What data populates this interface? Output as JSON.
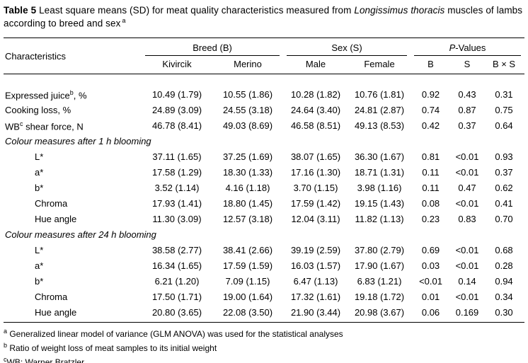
{
  "title": {
    "label": "Table 5",
    "segment1": " Least square means (SD) for meat quality characteristics measured from ",
    "species": "Longissimus thoracis",
    "segment2": " muscles of lambs according to breed and sex",
    "footnote_marker": "a"
  },
  "header": {
    "characteristics": "Characteristics",
    "groups": [
      {
        "label": "Breed (B)",
        "columns": [
          "Kivircik",
          "Merino"
        ]
      },
      {
        "label": "Sex (S)",
        "columns": [
          "Male",
          "Female"
        ]
      },
      {
        "label": "P-Values",
        "label_italic": "P",
        "label_rest": "-Values",
        "columns": [
          "B",
          "S",
          "B × S"
        ]
      }
    ]
  },
  "rows": [
    {
      "type": "data",
      "indent": false,
      "label": "Expressed juice",
      "label_sup": "b",
      "label_suffix": ", %",
      "values": [
        "10.49 (1.79)",
        "10.55 (1.86)",
        "10.28 (1.82)",
        "10.76 (1.81)",
        "0.92",
        "0.43",
        "0.31"
      ]
    },
    {
      "type": "data",
      "indent": false,
      "label": "Cooking loss, %",
      "values": [
        "24.89 (3.09)",
        "24.55 (3.18)",
        "24.64 (3.40)",
        "24.81 (2.87)",
        "0.74",
        "0.87",
        "0.75"
      ]
    },
    {
      "type": "data",
      "indent": false,
      "label": "WB",
      "label_sup": "c",
      "label_suffix": " shear force, N",
      "values": [
        "46.78 (8.41)",
        "49.03 (8.69)",
        "46.58 (8.51)",
        "49.13 (8.53)",
        "0.42",
        "0.37",
        "0.64"
      ]
    },
    {
      "type": "section",
      "label": "Colour measures after 1 h blooming"
    },
    {
      "type": "data",
      "indent": true,
      "label": "L*",
      "values": [
        "37.11 (1.65)",
        "37.25 (1.69)",
        "38.07 (1.65)",
        "36.30 (1.67)",
        "0.81",
        "<0.01",
        "0.93"
      ]
    },
    {
      "type": "data",
      "indent": true,
      "label": "a*",
      "values": [
        "17.58 (1.29)",
        "18.30 (1.33)",
        "17.16 (1.30)",
        "18.71 (1.31)",
        "0.11",
        "<0.01",
        "0.37"
      ]
    },
    {
      "type": "data",
      "indent": true,
      "label": "b*",
      "values": [
        "3.52 (1.14)",
        "4.16 (1.18)",
        "3.70 (1.15)",
        "3.98 (1.16)",
        "0.11",
        "0.47",
        "0.62"
      ]
    },
    {
      "type": "data",
      "indent": true,
      "label": "Chroma",
      "values": [
        "17.93 (1.41)",
        "18.80 (1.45)",
        "17.59 (1.42)",
        "19.15 (1.43)",
        "0.08",
        "<0.01",
        "0.41"
      ]
    },
    {
      "type": "data",
      "indent": true,
      "label": "Hue angle",
      "values": [
        "11.30 (3.09)",
        "12.57 (3.18)",
        "12.04 (3.11)",
        "11.82 (1.13)",
        "0.23",
        "0.83",
        "0.70"
      ]
    },
    {
      "type": "section",
      "label": "Colour measures after 24 h blooming"
    },
    {
      "type": "data",
      "indent": true,
      "label": "L*",
      "values": [
        "38.58 (2.77)",
        "38.41 (2.66)",
        "39.19 (2.59)",
        "37.80 (2.79)",
        "0.69",
        "<0.01",
        "0.68"
      ]
    },
    {
      "type": "data",
      "indent": true,
      "label": "a*",
      "values": [
        "16.34 (1.65)",
        "17.59 (1.59)",
        "16.03 (1.57)",
        "17.90 (1.67)",
        "0.03",
        "<0.01",
        "0.28"
      ]
    },
    {
      "type": "data",
      "indent": true,
      "label": "b*",
      "values": [
        "6.21 (1.20)",
        "7.09 (1.15)",
        "6.47 (1.13)",
        "6.83 (1.21)",
        "<0.01",
        "0.14",
        "0.94"
      ]
    },
    {
      "type": "data",
      "indent": true,
      "label": "Chroma",
      "values": [
        "17.50 (1.71)",
        "19.00 (1.64)",
        "17.32 (1.61)",
        "19.18 (1.72)",
        "0.01",
        "<0.01",
        "0.34"
      ]
    },
    {
      "type": "data",
      "indent": true,
      "label": "Hue angle",
      "values": [
        "20.80 (3.65)",
        "22.08 (3.50)",
        "21.90 (3.44)",
        "20.98 (3.67)",
        "0.06",
        "0.169",
        "0.30"
      ]
    }
  ],
  "footnotes": [
    {
      "sup": "a",
      "text": " Generalized linear model of variance (GLM ANOVA) was used for the statistical analyses"
    },
    {
      "sup": "b",
      "text": " Ratio of weight loss of meat samples to its initial weight"
    },
    {
      "sup": "c",
      "text": "WB: Warner Bratzler"
    }
  ]
}
